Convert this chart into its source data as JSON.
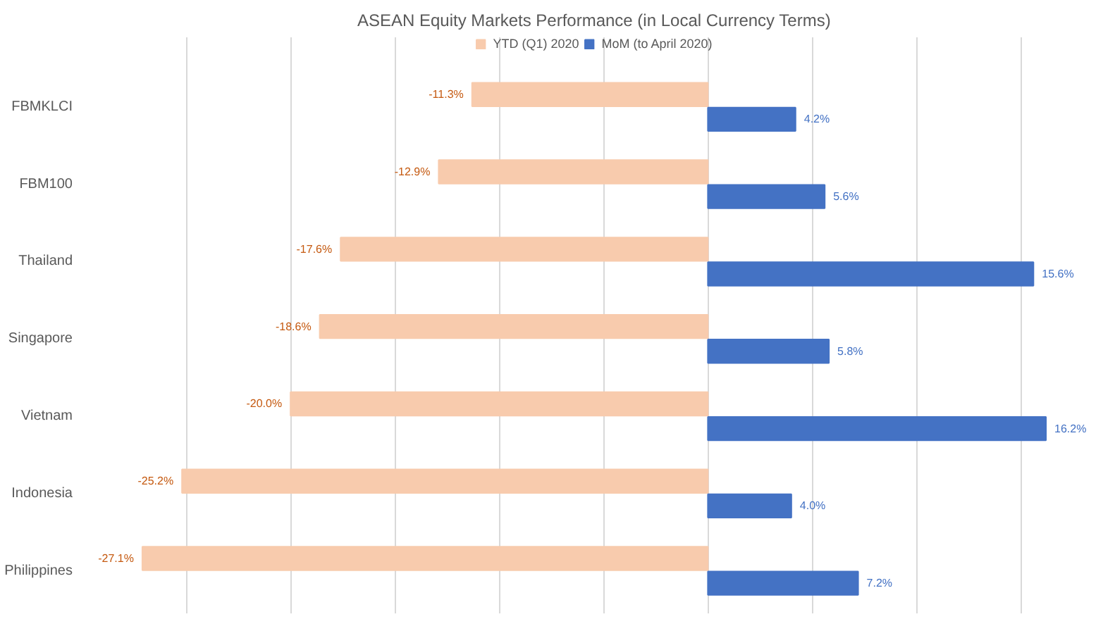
{
  "chart_data": {
    "type": "bar",
    "orientation": "horizontal",
    "title": "ASEAN Equity Markets Performance (in Local Currency Terms)",
    "categories": [
      "FBMKLCI",
      "FBM100",
      "Thailand",
      "Singapore",
      "Vietnam",
      "Indonesia",
      "Philippines"
    ],
    "series": [
      {
        "name": "YTD (Q1) 2020",
        "color": "#f8cbad",
        "values": [
          -11.3,
          -12.9,
          -17.6,
          -18.6,
          -20.0,
          -25.2,
          -27.1
        ],
        "value_labels": [
          "-11.3%",
          "-12.9%",
          "-17.6%",
          "-18.6%",
          "-20.0%",
          "-25.2%",
          "-27.1%"
        ]
      },
      {
        "name": "MoM (to April 2020)",
        "color": "#4472c4",
        "values": [
          4.2,
          5.6,
          15.6,
          5.8,
          16.2,
          4.0,
          7.2
        ],
        "value_labels": [
          "4.2%",
          "5.6%",
          "15.6%",
          "5.8%",
          "16.2%",
          "4.0%",
          "7.2%"
        ]
      }
    ],
    "tick_labels": "y",
    "grid": "x",
    "legend": "top"
  }
}
